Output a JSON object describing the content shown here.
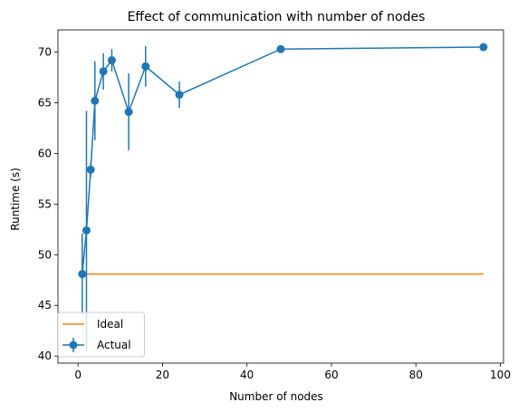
{
  "chart_data": {
    "type": "line",
    "title": "Effect of communication with number of nodes",
    "xlabel": "Number of nodes",
    "ylabel": "Runtime (s)",
    "xlim": [
      -4.75,
      100.75
    ],
    "ylim": [
      39.3,
      72.2
    ],
    "xticks": [
      0,
      20,
      40,
      60,
      80,
      100
    ],
    "yticks": [
      40,
      45,
      50,
      55,
      60,
      65,
      70
    ],
    "grid": false,
    "legend_position": "lower-left",
    "series": [
      {
        "name": "Ideal",
        "color": "#ff7f0e",
        "x": [
          1,
          96
        ],
        "y": [
          48.1,
          48.1
        ]
      },
      {
        "name": "Actual",
        "color": "#1f77b4",
        "marker": "circle",
        "x": [
          1,
          2,
          3,
          4,
          6,
          8,
          12,
          16,
          24,
          48,
          96
        ],
        "y": [
          48.1,
          52.4,
          58.4,
          65.2,
          68.1,
          69.2,
          64.1,
          68.6,
          65.8,
          70.3,
          70.5
        ],
        "yerr": [
          4.0,
          11.8,
          0.7,
          3.9,
          1.8,
          1.1,
          3.8,
          2.0,
          1.3,
          0.2,
          0.2
        ]
      }
    ]
  }
}
